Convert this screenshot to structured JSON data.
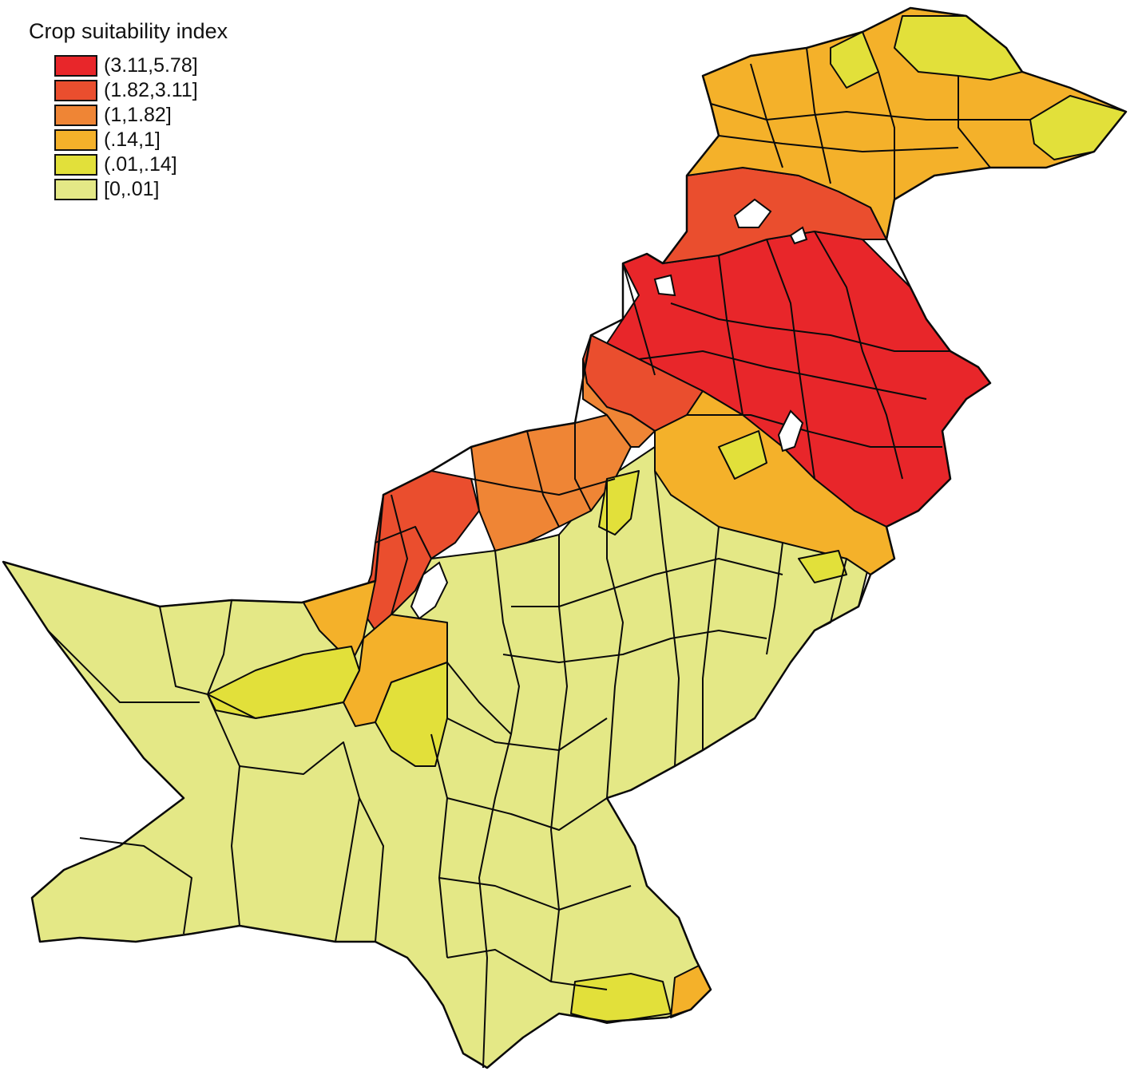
{
  "legend": {
    "title": "Crop suitability index",
    "items": [
      {
        "label": "(3.11,5.78]",
        "color": "#e8262a"
      },
      {
        "label": "(1.82,3.11]",
        "color": "#ea4e2e"
      },
      {
        "label": "(1,1.82]",
        "color": "#ef8535"
      },
      {
        "label": "(.14,1]",
        "color": "#f4b12a"
      },
      {
        "label": "(.01,.14]",
        "color": "#e2e03a"
      },
      {
        "label": "[0,.01]",
        "color": "#e4e886"
      }
    ]
  },
  "map": {
    "subject": "Pakistan districts",
    "value_bins": [
      "(3.11,5.78]",
      "(1.82,3.11]",
      "(1,1.82]",
      "(.14,1]",
      "(.01,.14]",
      "[0,.01]"
    ]
  }
}
